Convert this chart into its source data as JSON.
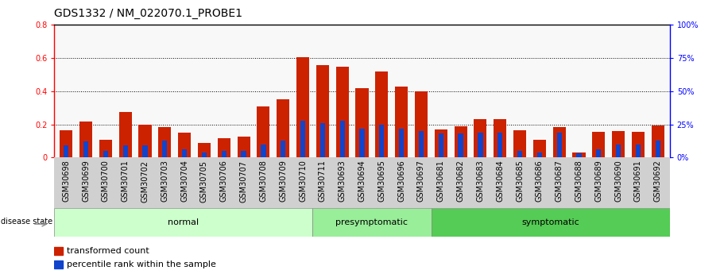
{
  "title": "GDS1332 / NM_022070.1_PROBE1",
  "samples": [
    "GSM30698",
    "GSM30699",
    "GSM30700",
    "GSM30701",
    "GSM30702",
    "GSM30703",
    "GSM30704",
    "GSM30705",
    "GSM30706",
    "GSM30707",
    "GSM30708",
    "GSM30709",
    "GSM30710",
    "GSM30711",
    "GSM30693",
    "GSM30694",
    "GSM30695",
    "GSM30696",
    "GSM30697",
    "GSM30681",
    "GSM30682",
    "GSM30683",
    "GSM30684",
    "GSM30685",
    "GSM30686",
    "GSM30687",
    "GSM30688",
    "GSM30689",
    "GSM30690",
    "GSM30691",
    "GSM30692"
  ],
  "transformed_count": [
    0.165,
    0.215,
    0.108,
    0.275,
    0.2,
    0.185,
    0.148,
    0.088,
    0.118,
    0.128,
    0.31,
    0.35,
    0.605,
    0.555,
    0.545,
    0.42,
    0.52,
    0.425,
    0.4,
    0.168,
    0.19,
    0.23,
    0.23,
    0.165,
    0.108,
    0.185,
    0.032,
    0.155,
    0.16,
    0.155,
    0.195
  ],
  "percentile_rank_scaled": [
    0.072,
    0.096,
    0.04,
    0.072,
    0.072,
    0.104,
    0.048,
    0.032,
    0.04,
    0.04,
    0.08,
    0.104,
    0.224,
    0.208,
    0.224,
    0.176,
    0.2,
    0.176,
    0.16,
    0.144,
    0.144,
    0.152,
    0.152,
    0.04,
    0.032,
    0.152,
    0.024,
    0.048,
    0.08,
    0.08,
    0.104
  ],
  "groups": [
    {
      "label": "normal",
      "start": 0,
      "end": 13,
      "color": "#ccffcc"
    },
    {
      "label": "presymptomatic",
      "start": 13,
      "end": 19,
      "color": "#99ee99"
    },
    {
      "label": "symptomatic",
      "start": 19,
      "end": 31,
      "color": "#55cc55"
    }
  ],
  "ylim_left": [
    0,
    0.8
  ],
  "ylim_right": [
    0,
    100
  ],
  "yticks_left": [
    0,
    0.2,
    0.4,
    0.6,
    0.8
  ],
  "yticks_right": [
    0,
    25,
    50,
    75,
    100
  ],
  "bar_color_red": "#cc2200",
  "bar_color_blue": "#1144cc",
  "bar_width": 0.65,
  "blue_bar_width": 0.25,
  "bg_color": "#ffffff",
  "title_fontsize": 10,
  "tick_fontsize": 7,
  "group_fontsize": 8,
  "legend_fontsize": 8,
  "disease_label": "disease state"
}
